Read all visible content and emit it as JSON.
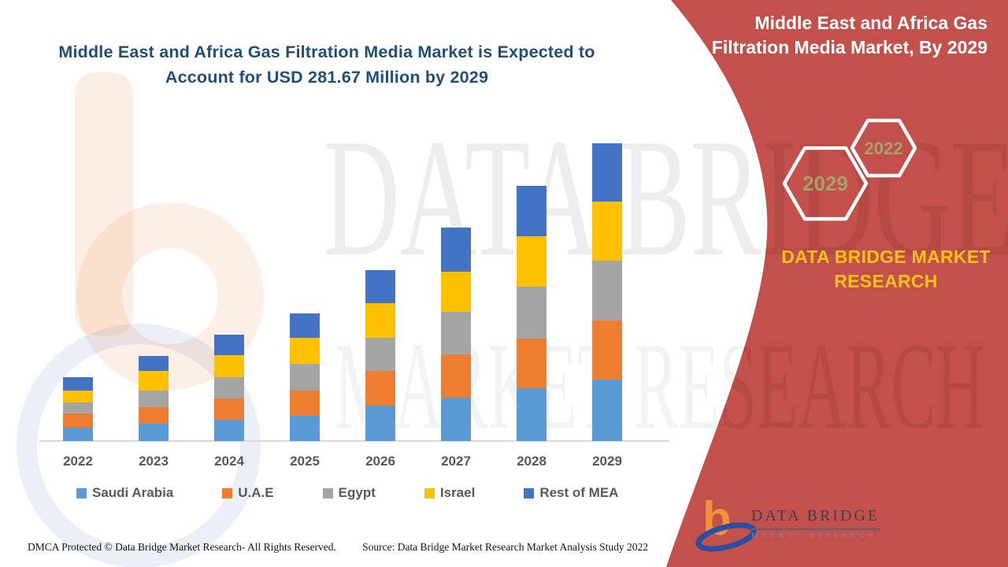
{
  "chart_data": {
    "type": "bar",
    "stacked": true,
    "title": "Middle East and Africa Gas Filtration Media Market is Expected to Account for USD 281.67 Million by 2029",
    "unit": "USD Million",
    "categories": [
      "2022",
      "2023",
      "2024",
      "2025",
      "2026",
      "2027",
      "2028",
      "2029"
    ],
    "series": [
      {
        "name": "Saudi Arabia",
        "color": "#5B9BD5",
        "values": [
          12.7,
          16.6,
          20.3,
          23.6,
          33.5,
          40.9,
          49.6,
          58.4
        ]
      },
      {
        "name": "U.A.E",
        "color": "#ED7D31",
        "values": [
          13.6,
          15.6,
          19.9,
          24.0,
          33.1,
          40.9,
          47.1,
          55.8
        ]
      },
      {
        "name": "Egypt",
        "color": "#A5A5A5",
        "values": [
          9.9,
          15.4,
          19.9,
          25.5,
          30.7,
          40.2,
          48.9,
          56.3
        ]
      },
      {
        "name": "Israel",
        "color": "#FFC000",
        "values": [
          11.2,
          18.6,
          21.1,
          24.1,
          33.0,
          38.0,
          47.9,
          55.8
        ]
      },
      {
        "name": "Rest of MEA",
        "color": "#4472C4",
        "values": [
          13.0,
          14.4,
          19.4,
          23.5,
          31.6,
          41.5,
          47.6,
          55.4
        ]
      }
    ],
    "totals_estimated": [
      60.4,
      80.6,
      100.6,
      120.7,
      161.9,
      201.5,
      241.1,
      281.7
    ],
    "estimation_note": "segment values estimated from bar heights; 2029 total anchored to USD 281.67 Million",
    "legend_position": "bottom",
    "gridlines": false,
    "y_axis_visible": false
  },
  "watermarks": {
    "line1": "DATA BRIDGE",
    "line2": "MARKET RESEARCH"
  },
  "red_panel": {
    "title": "Middle East and Africa Gas Filtration Media Market, By 2029",
    "hexagons": [
      {
        "label": "2029"
      },
      {
        "label": "2022"
      }
    ],
    "brand_lines": [
      "DATA BRIDGE MARKET",
      "RESEARCH"
    ],
    "accent_red": "#C4504B",
    "brand_yellow": "#F5C318",
    "hexagon_label_color": "#A89E6E"
  },
  "logo": {
    "name_text": "DATA BRIDGE",
    "subtitle_text": "MARKET RESEARCH"
  },
  "footer": {
    "left": "DMCA Protected © Data Bridge Market Research- All Rights Reserved.",
    "right": "Source: Data Bridge Market Research Market Analysis Study 2022"
  },
  "colors": {
    "title_blue": "#1F4E79",
    "axis_gray": "#D9D9D9",
    "label_gray": "#595959"
  }
}
